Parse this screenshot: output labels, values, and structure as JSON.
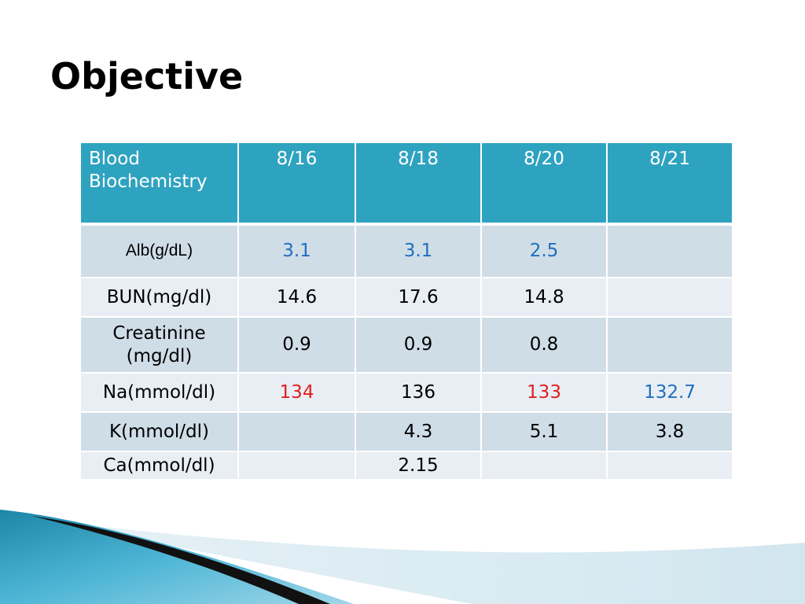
{
  "slide": {
    "title": "Objective"
  },
  "table": {
    "header": {
      "first_line1": "Blood",
      "first_line2": "Biochemistry",
      "dates": [
        "8/16",
        "8/18",
        "8/20",
        "8/21"
      ]
    },
    "rows": [
      {
        "label": "Alb(g/dL)",
        "values": [
          {
            "text": "3.1",
            "color": "#1f6fbf"
          },
          {
            "text": "3.1",
            "color": "#1f6fbf"
          },
          {
            "text": "2.5",
            "color": "#1f6fbf"
          },
          {
            "text": "",
            "color": "#000000"
          }
        ]
      },
      {
        "label": "BUN(mg/dl)",
        "values": [
          {
            "text": "14.6",
            "color": "#000000"
          },
          {
            "text": "17.6",
            "color": "#000000"
          },
          {
            "text": "14.8",
            "color": "#000000"
          },
          {
            "text": "",
            "color": "#000000"
          }
        ]
      },
      {
        "label_line1": "Creatinine",
        "label_line2": "(mg/dl)",
        "values": [
          {
            "text": "0.9",
            "color": "#000000"
          },
          {
            "text": "0.9",
            "color": "#000000"
          },
          {
            "text": "0.8",
            "color": "#000000"
          },
          {
            "text": "",
            "color": "#000000"
          }
        ]
      },
      {
        "label": "Na(mmol/dl)",
        "values": [
          {
            "text": "134",
            "color": "#e02020"
          },
          {
            "text": "136",
            "color": "#000000"
          },
          {
            "text": "133",
            "color": "#e02020"
          },
          {
            "text": "132.7",
            "color": "#1f6fbf"
          }
        ]
      },
      {
        "label": "K(mmol/dl)",
        "values": [
          {
            "text": "",
            "color": "#000000"
          },
          {
            "text": "4.3",
            "color": "#000000"
          },
          {
            "text": "5.1",
            "color": "#000000"
          },
          {
            "text": "3.8",
            "color": "#000000"
          }
        ]
      },
      {
        "label": "Ca(mmol/dl)",
        "values": [
          {
            "text": "",
            "color": "#000000"
          },
          {
            "text": "2.15",
            "color": "#000000"
          },
          {
            "text": "",
            "color": "#000000"
          },
          {
            "text": "",
            "color": "#000000"
          }
        ]
      }
    ]
  },
  "colors": {
    "header_bg": "#2ea3c0",
    "row_dark": "#cfdde7",
    "row_light": "#e8eef4",
    "accent_blue": "#1f6fbf",
    "accent_red": "#e02020"
  }
}
